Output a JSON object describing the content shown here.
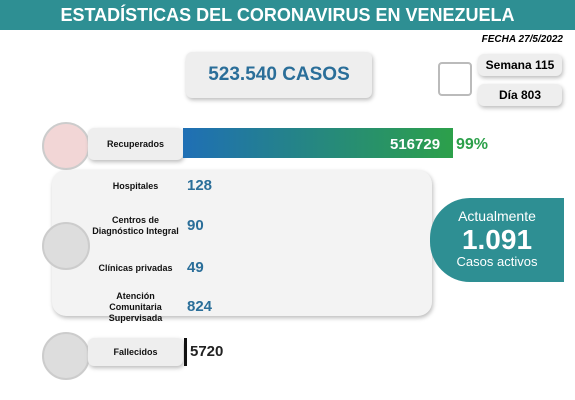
{
  "header": {
    "title": "ESTADÍSTICAS DEL CORONAVIRUS EN VENEZUELA",
    "date": "FECHA 27/5/2022"
  },
  "total": "523.540 CASOS",
  "week": "Semana 115",
  "day": "Día 803",
  "recovered": {
    "label": "Recuperados",
    "value": 516729,
    "percent": "99%"
  },
  "care": [
    {
      "label": [
        "Hospitales"
      ],
      "value": 128
    },
    {
      "label": [
        "Centros de",
        "Diagnóstico Integral"
      ],
      "value": 90
    },
    {
      "label": [
        "Clínicas privadas"
      ],
      "value": 49
    },
    {
      "label": [
        "Atención",
        "Comunitaria",
        "Supervisada"
      ],
      "value": 824
    }
  ],
  "active": {
    "line1": "Actualmente",
    "value": "1.091",
    "line2": "Casos activos"
  },
  "deaths": {
    "label": "Fallecidos",
    "value": 5720
  }
}
